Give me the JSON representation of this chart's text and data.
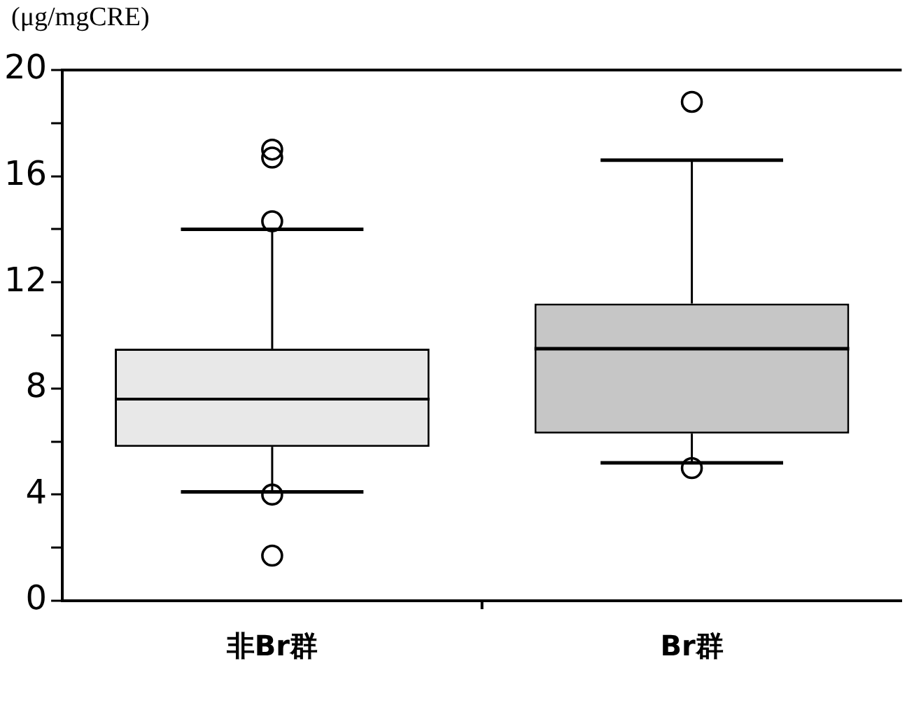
{
  "chart_data": {
    "type": "box",
    "ylabel": "(μg/mgCRE)",
    "categories": [
      "非Br群",
      "Br群"
    ],
    "boxes": [
      {
        "low": 4.1,
        "q1": 5.8,
        "median": 7.6,
        "q3": 9.5,
        "high": 14.0,
        "outliers": [
          17.0,
          16.7,
          14.3,
          4.0,
          1.7
        ]
      },
      {
        "low": 5.2,
        "q1": 6.3,
        "median": 9.5,
        "q3": 11.2,
        "high": 16.6,
        "outliers": [
          18.8,
          5.0
        ]
      }
    ],
    "colors": [
      "#e8e8e8",
      "#c6c6c6"
    ],
    "ylim": [
      0,
      20
    ],
    "yticks": [
      0,
      {
        "value": 2,
        "label": null
      },
      4,
      {
        "value": 6,
        "label": null
      },
      8,
      {
        "value": 10,
        "label": null
      },
      12,
      {
        "value": 14,
        "label": null
      },
      16,
      {
        "value": 18,
        "label": null
      },
      20
    ],
    "grid": false,
    "legend": false,
    "marker": "circle"
  }
}
